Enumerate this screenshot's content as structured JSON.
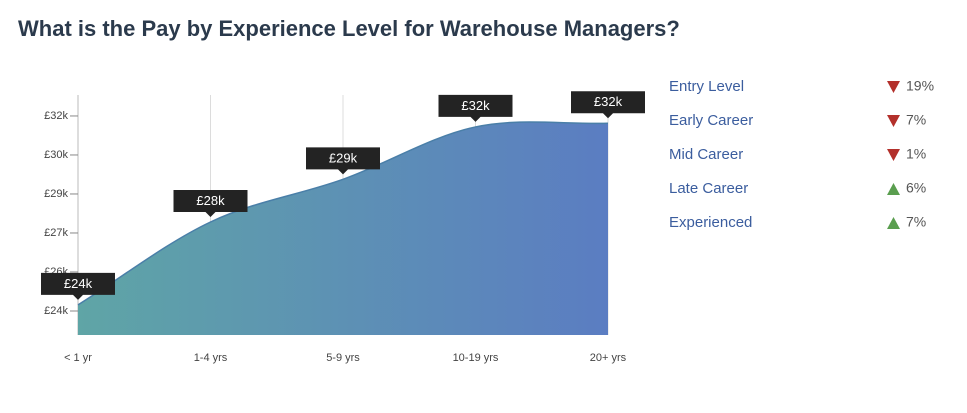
{
  "chart_data": {
    "type": "area",
    "title": "What is the Pay by Experience Level for Warehouse Managers?",
    "categories": [
      "< 1 yr",
      "1-4 yrs",
      "5-9 yrs",
      "10-19 yrs",
      "20+ yrs"
    ],
    "values": [
      24250,
      27650,
      29400,
      31550,
      31700
    ],
    "value_labels": [
      "£24k",
      "£28k",
      "£29k",
      "£32k",
      "£32k"
    ],
    "colors": [
      "#5fa5a6",
      "#5b7dc2"
    ],
    "ylim": [
      23015,
      32860
    ],
    "yticks": [
      {
        "value": 24000,
        "label": "£24k"
      },
      {
        "value": 25600,
        "label": "£26k"
      },
      {
        "value": 27200,
        "label": "£27k"
      },
      {
        "value": 28800,
        "label": "£29k"
      },
      {
        "value": 30400,
        "label": "£30k"
      },
      {
        "value": 32000,
        "label": "£32k"
      }
    ],
    "grid": true,
    "pay_changes": [
      {
        "level": "Entry Level",
        "change": "19%",
        "direction": "down"
      },
      {
        "level": "Early Career",
        "change": "7%",
        "direction": "down"
      },
      {
        "level": "Mid Career",
        "change": "1%",
        "direction": "down"
      },
      {
        "level": "Late Career",
        "change": "6%",
        "direction": "up"
      },
      {
        "level": "Experienced",
        "change": "7%",
        "direction": "up"
      }
    ]
  }
}
